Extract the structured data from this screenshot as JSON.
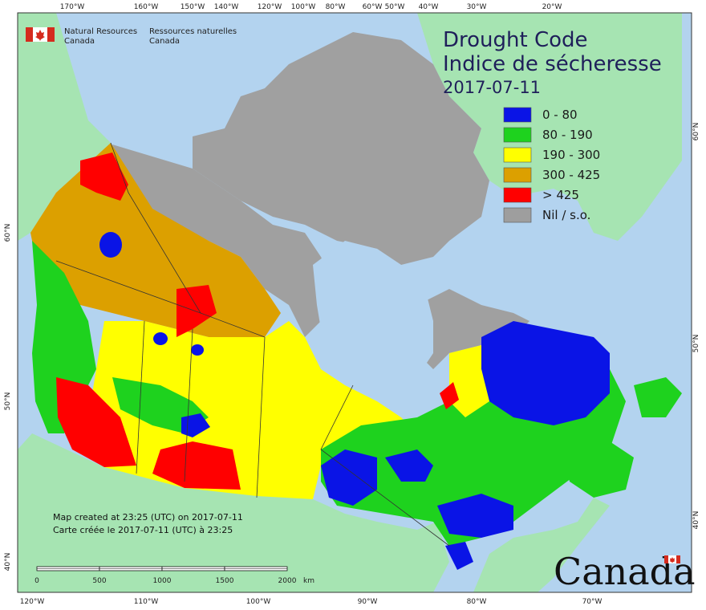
{
  "header": {
    "agency_en_line1": "Natural Resources",
    "agency_en_line2": "Canada",
    "agency_fr_line1": "Ressources naturelles",
    "agency_fr_line2": "Canada"
  },
  "title": {
    "line1": "Drought Code",
    "line2": "Indice de sécheresse",
    "date": "2017-07-11"
  },
  "legend": {
    "items": [
      {
        "label": "0 - 80",
        "color": "#0a14e6"
      },
      {
        "label": "80 - 190",
        "color": "#1ed21e"
      },
      {
        "label": "190 - 300",
        "color": "#ffff00"
      },
      {
        "label": "300 - 425",
        "color": "#dca000"
      },
      {
        "label": "> 425",
        "color": "#ff0000"
      },
      {
        "label": "Nil / s.o.",
        "color": "#9e9e9e"
      }
    ]
  },
  "colors": {
    "ocean": "#b3d3ef",
    "foreign_land": "#a6e4b2",
    "nil": "#a0a0a0"
  },
  "top_longitudes": [
    "170°W",
    "160°W",
    "150°W",
    "140°W",
    "120°W",
    "100°W",
    "80°W",
    "60°W",
    "50°W",
    "40°W",
    "30°W",
    "20°W"
  ],
  "bottom_longitudes": [
    "120°W",
    "110°W",
    "100°W",
    "90°W",
    "80°W",
    "70°W"
  ],
  "left_latitudes": [
    "60°N",
    "50°N",
    "40°N"
  ],
  "right_latitudes": [
    "60°N",
    "50°N",
    "40°N"
  ],
  "credits": {
    "created_en": "Map created at 23:25 (UTC) on 2017-07-11",
    "created_fr": "Carte créée le 2017-07-11 (UTC) à 23:25"
  },
  "scale_bar": {
    "ticks": [
      "0",
      "500",
      "1000",
      "1500",
      "2000"
    ],
    "unit": "km"
  },
  "wordmark": "Canada"
}
